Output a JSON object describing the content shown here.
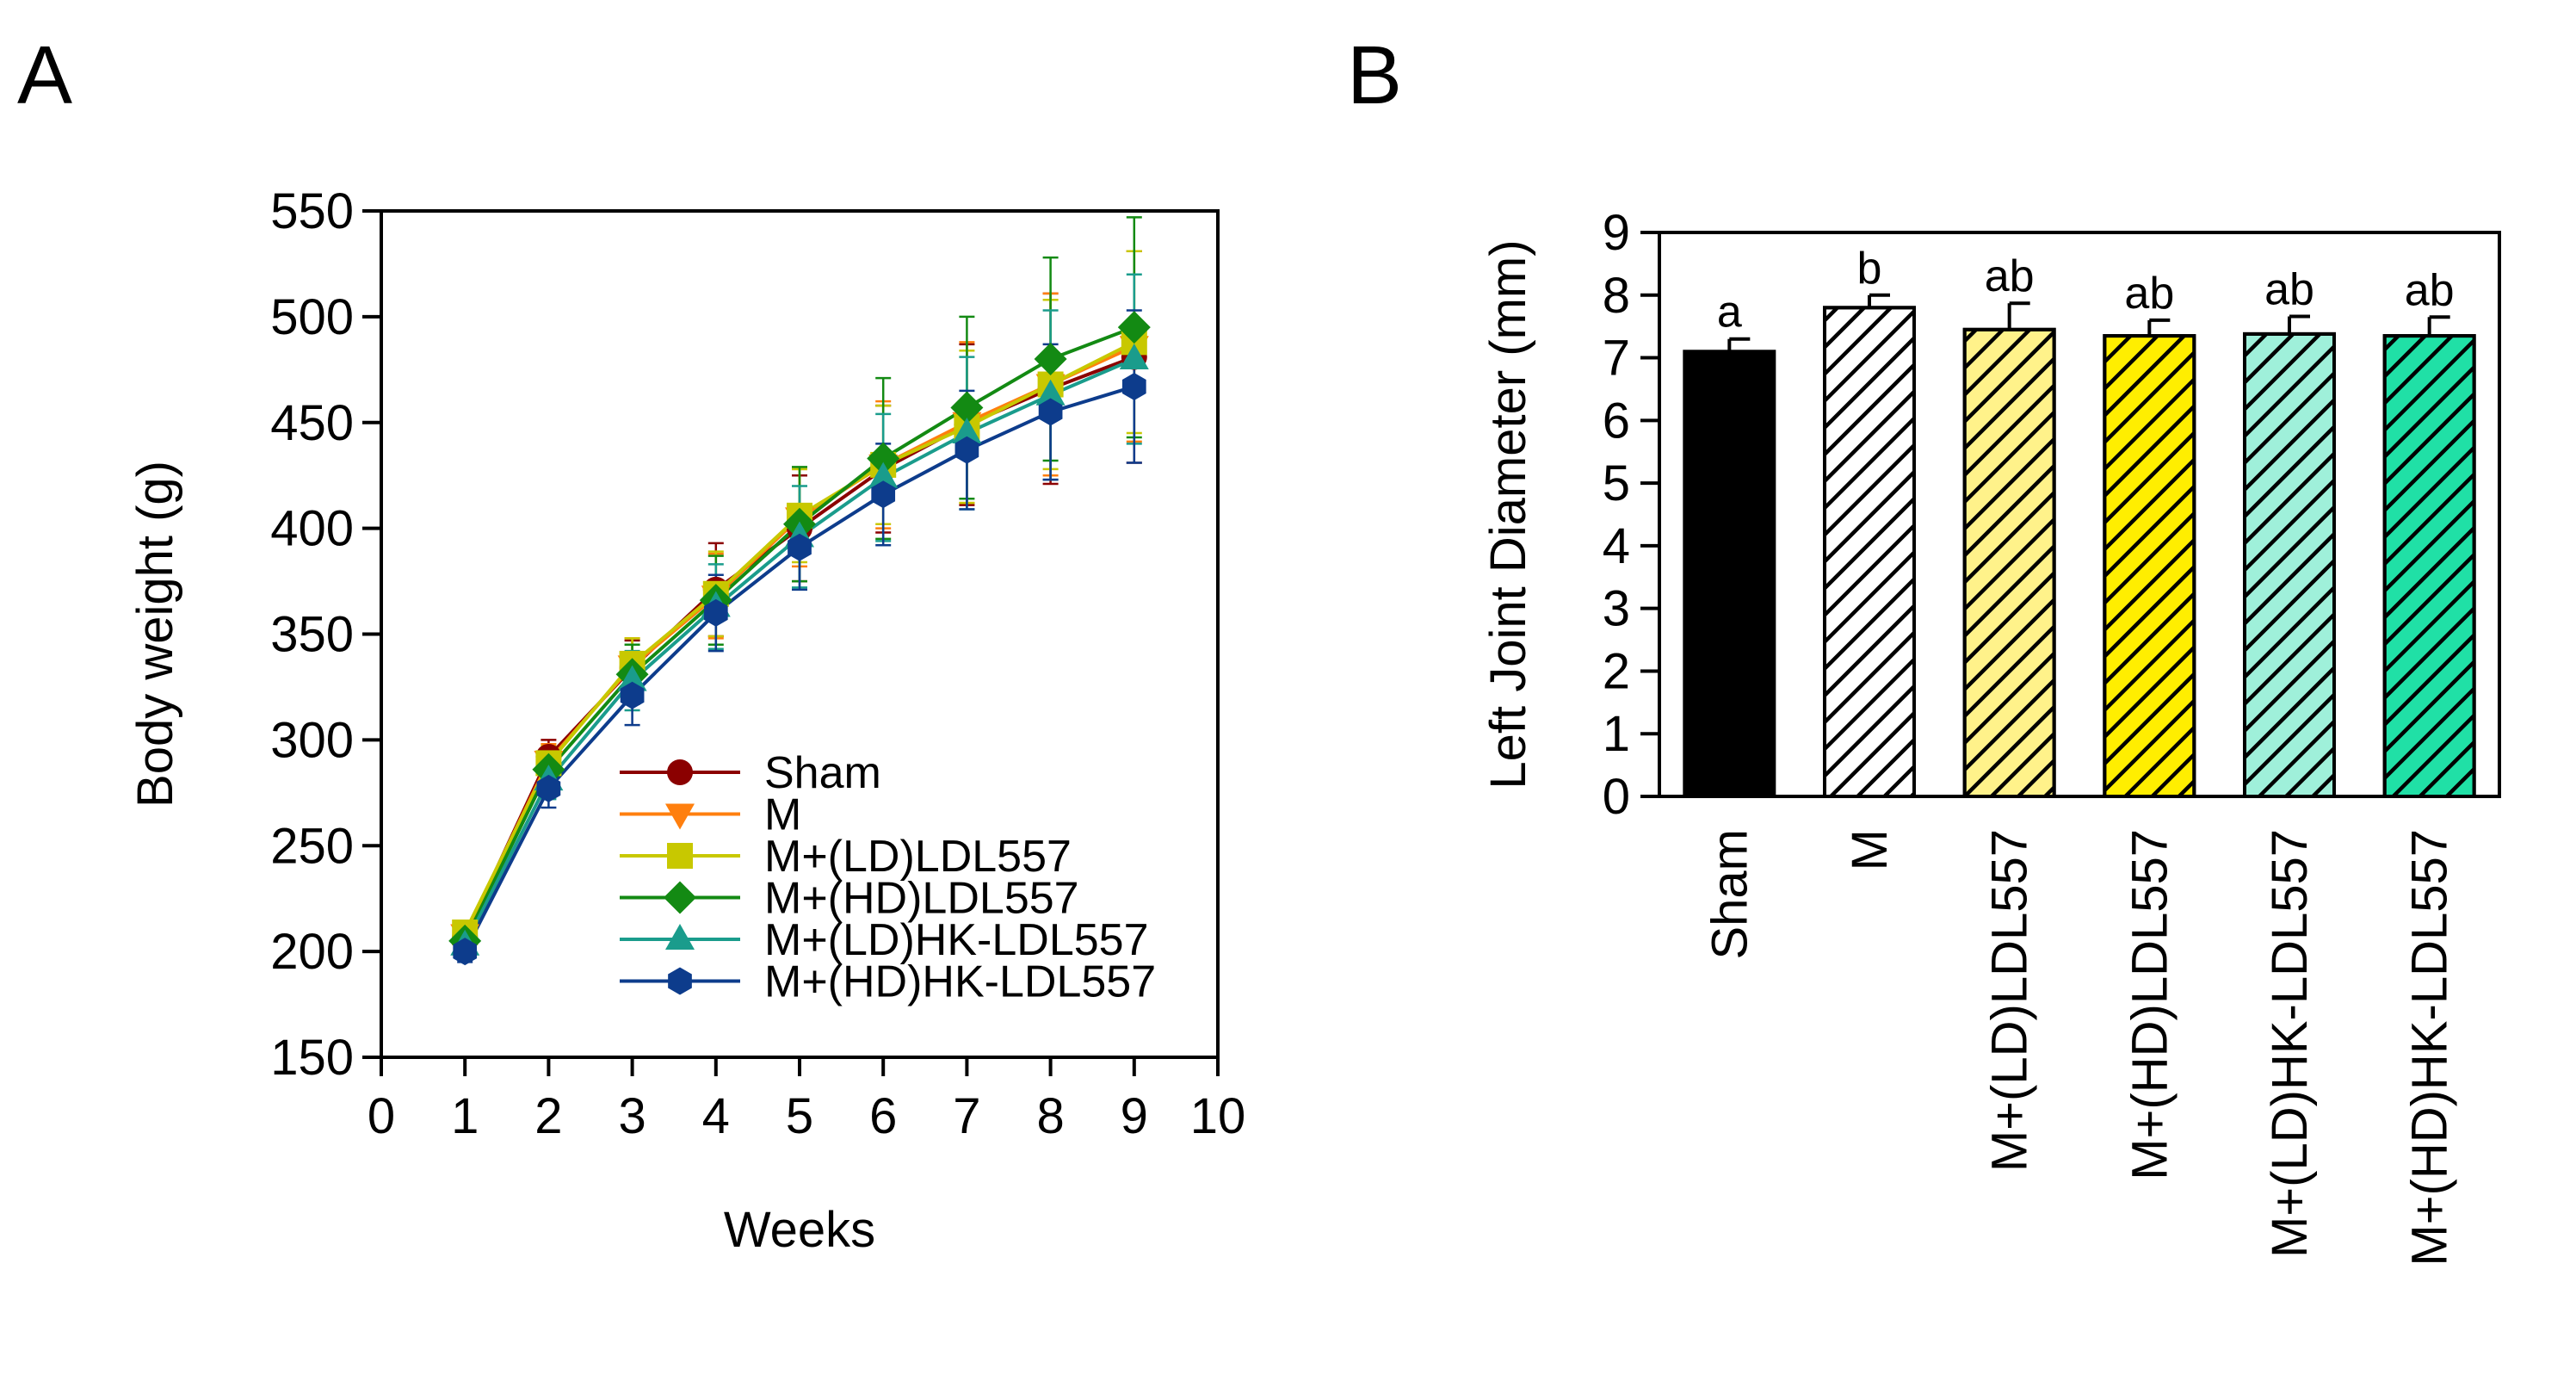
{
  "panels": {
    "a": {
      "letter": "A"
    },
    "b": {
      "letter": "B"
    }
  },
  "chart_data": [
    {
      "type": "line",
      "panel": "A",
      "title": "",
      "xlabel": "Weeks",
      "ylabel": "Body weight (g)",
      "xlim": [
        0,
        10
      ],
      "ylim": [
        150,
        550
      ],
      "xticks": [
        0,
        1,
        2,
        3,
        4,
        5,
        6,
        7,
        8,
        9,
        10
      ],
      "yticks": [
        150,
        200,
        250,
        300,
        350,
        400,
        450,
        500,
        550
      ],
      "grid": false,
      "legend_position": "bottom-right",
      "x": [
        1,
        2,
        3,
        4,
        5,
        6,
        7,
        8,
        9
      ],
      "series": [
        {
          "name": "Sham",
          "color": "#8b0000",
          "marker": "circle",
          "values": [
            207,
            292,
            334,
            371,
            400,
            428,
            449,
            466,
            481
          ],
          "errors": [
            5,
            8,
            13,
            22,
            25,
            30,
            38,
            45,
            50
          ]
        },
        {
          "name": "M",
          "color": "#ff7f0e",
          "marker": "triangle-down",
          "values": [
            208,
            290,
            335,
            368,
            405,
            430,
            450,
            468,
            486
          ],
          "errors": [
            5,
            8,
            13,
            20,
            23,
            30,
            38,
            43,
            45
          ]
        },
        {
          "name": "M+(LD)LDL557",
          "color": "#c8c800",
          "marker": "square",
          "values": [
            209,
            289,
            336,
            369,
            406,
            430,
            448,
            468,
            488
          ],
          "errors": [
            5,
            8,
            12,
            20,
            22,
            28,
            36,
            40,
            43
          ]
        },
        {
          "name": "M+(HD)LDL557",
          "color": "#138a13",
          "marker": "diamond",
          "values": [
            205,
            286,
            331,
            366,
            402,
            433,
            457,
            480,
            495
          ],
          "errors": [
            5,
            9,
            14,
            21,
            27,
            38,
            43,
            48,
            52
          ]
        },
        {
          "name": "M+(LD)HK-LDL557",
          "color": "#1a9c8c",
          "marker": "triangle-up",
          "values": [
            203,
            281,
            328,
            363,
            396,
            424,
            445,
            463,
            480
          ],
          "errors": [
            5,
            9,
            14,
            20,
            24,
            30,
            36,
            40,
            40
          ]
        },
        {
          "name": "M+(HD)HK-LDL557",
          "color": "#0d3c8c",
          "marker": "hexagon",
          "values": [
            200,
            277,
            321,
            360,
            391,
            416,
            437,
            455,
            467
          ],
          "errors": [
            5,
            9,
            14,
            18,
            20,
            24,
            28,
            32,
            36
          ]
        }
      ]
    },
    {
      "type": "bar",
      "panel": "B",
      "title": "",
      "xlabel": "",
      "ylabel": "Left Joint Diameter (mm)",
      "ylim": [
        0,
        9
      ],
      "yticks": [
        0,
        1,
        2,
        3,
        4,
        5,
        6,
        7,
        8,
        9
      ],
      "grid": false,
      "categories": [
        "Sham",
        "M",
        "M+(LD)LDL557",
        "M+(HD)LDL557",
        "M+(LD)HK-LDL557",
        "M+(HD)HK-LDL557"
      ],
      "values": [
        7.1,
        7.8,
        7.45,
        7.35,
        7.38,
        7.35
      ],
      "errors": [
        0.2,
        0.2,
        0.42,
        0.25,
        0.28,
        0.3
      ],
      "significance": [
        "a",
        "b",
        "ab",
        "ab",
        "ab",
        "ab"
      ],
      "fill_colors": [
        "#000000",
        "#ffffff",
        "#fff28a",
        "#ffee00",
        "#9ff0da",
        "#20e0a6"
      ],
      "patterns": [
        "solid",
        "hatch",
        "hatch",
        "hatch",
        "hatch",
        "hatch"
      ]
    }
  ]
}
